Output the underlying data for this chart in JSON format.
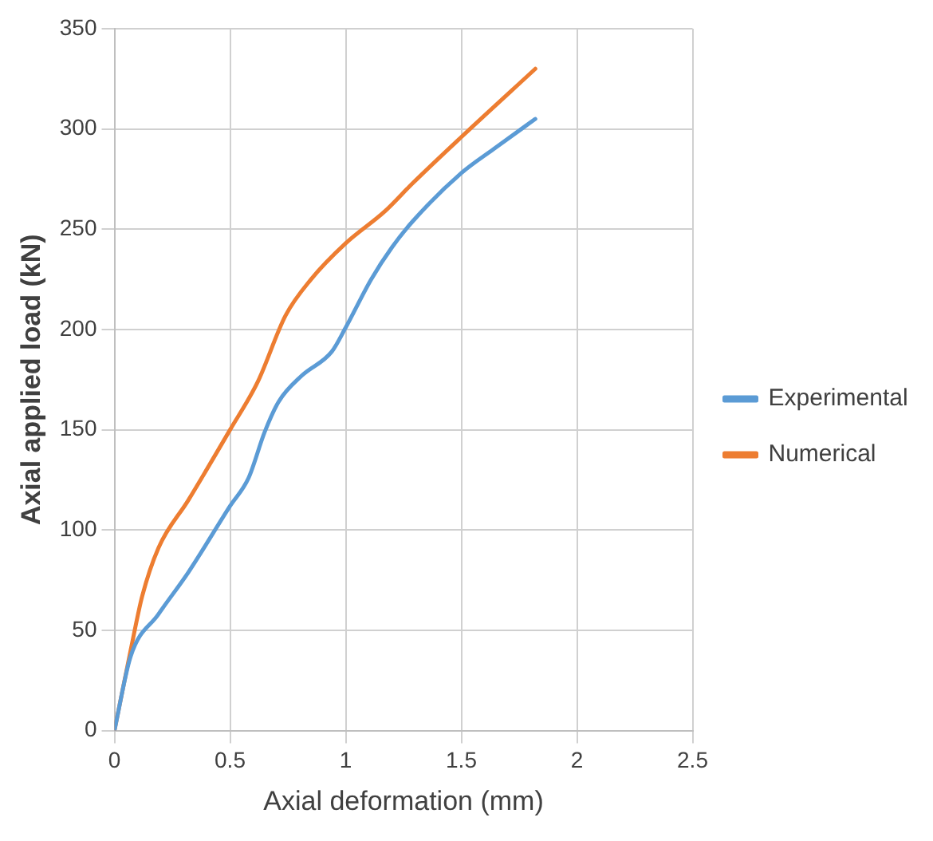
{
  "chart_data": {
    "type": "line",
    "xlabel": "Axial deformation (mm)",
    "ylabel": "Axial applied load (kN)",
    "xlim": [
      0,
      2.5
    ],
    "xticks": [
      0,
      0.5,
      1,
      1.5,
      2,
      2.5
    ],
    "ylim": [
      0,
      350
    ],
    "yticks": [
      0,
      50,
      100,
      150,
      200,
      250,
      300,
      350
    ],
    "grid": true,
    "legend": "right",
    "marker": "none",
    "line_style": "solid",
    "series": [
      {
        "name": "Experimental",
        "color": "#5b9bd5",
        "x": [
          0,
          0.07,
          0.19,
          0.32,
          0.5,
          0.58,
          0.65,
          0.71,
          0.81,
          0.94,
          1.0,
          1.11,
          1.2,
          1.29,
          1.5,
          1.64,
          1.82
        ],
        "values": [
          0,
          37,
          58,
          79,
          112,
          126,
          149,
          164,
          177,
          189,
          201,
          225,
          241,
          254,
          278,
          290,
          305
        ]
      },
      {
        "name": "Numerical",
        "color": "#ed7d31",
        "x": [
          0,
          0.07,
          0.12,
          0.19,
          0.32,
          0.5,
          0.62,
          0.74,
          0.85,
          1.0,
          1.17,
          1.29,
          1.5,
          1.82
        ],
        "values": [
          0,
          40,
          67,
          91,
          115,
          150,
          174,
          207,
          225,
          243,
          259,
          273,
          296,
          330
        ]
      }
    ]
  }
}
